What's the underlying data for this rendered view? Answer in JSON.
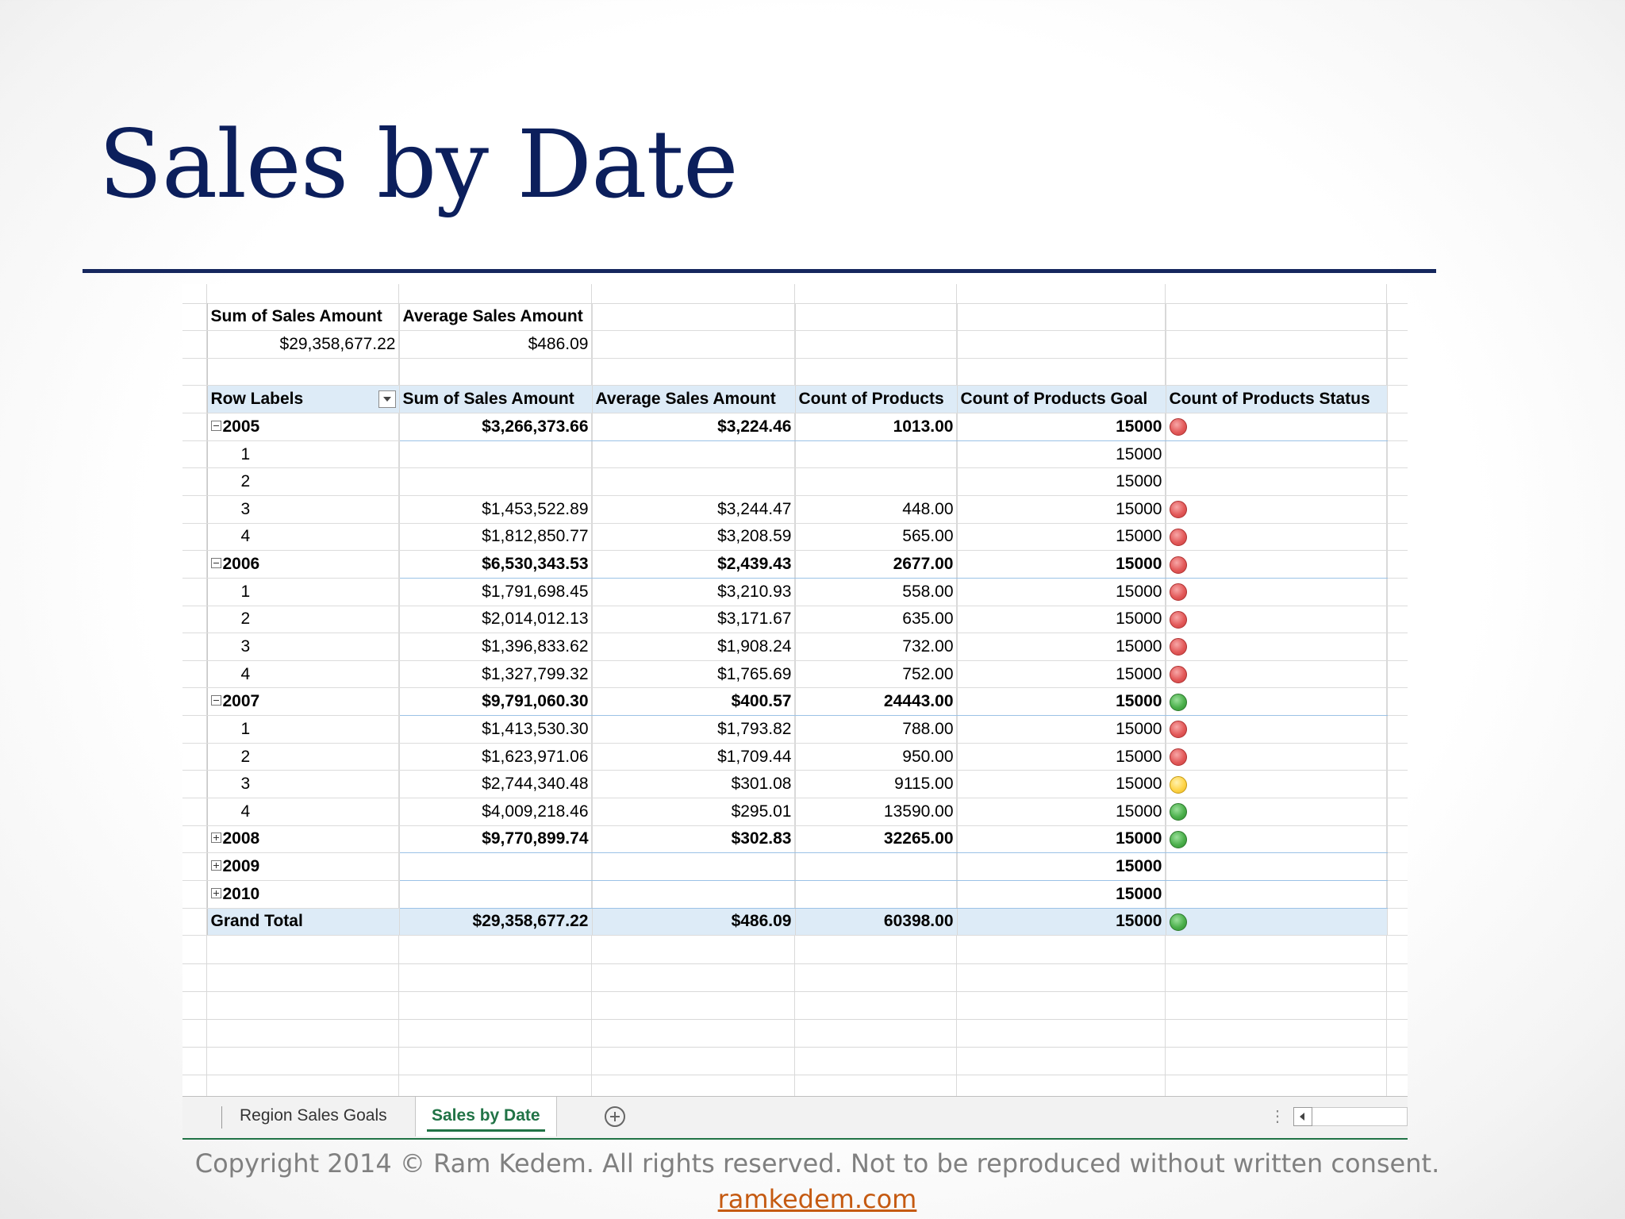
{
  "slide": {
    "title": "Sales by Date",
    "copyright": "Copyright 2014 © Ram Kedem. All rights reserved. Not to be reproduced without written consent.",
    "website": "ramkedem.com"
  },
  "summary": {
    "headers": [
      "Sum of Sales Amount",
      "Average Sales Amount"
    ],
    "values": [
      "$29,358,677.22",
      "$486.09"
    ]
  },
  "pivot": {
    "headers": [
      "Row Labels",
      "Sum of Sales Amount",
      "Average Sales Amount",
      "Count of Products",
      "Count of Products Goal",
      "Count of Products Status"
    ],
    "rows": [
      {
        "label": "2005",
        "level": "year",
        "toggle": "minus",
        "sum": "$3,266,373.66",
        "avg": "$3,224.46",
        "count": "1013.00",
        "goal": "15000",
        "status": "red"
      },
      {
        "label": "1",
        "level": "quarter",
        "sum": "",
        "avg": "",
        "count": "",
        "goal": "15000",
        "status": ""
      },
      {
        "label": "2",
        "level": "quarter",
        "sum": "",
        "avg": "",
        "count": "",
        "goal": "15000",
        "status": ""
      },
      {
        "label": "3",
        "level": "quarter",
        "sum": "$1,453,522.89",
        "avg": "$3,244.47",
        "count": "448.00",
        "goal": "15000",
        "status": "red"
      },
      {
        "label": "4",
        "level": "quarter",
        "sum": "$1,812,850.77",
        "avg": "$3,208.59",
        "count": "565.00",
        "goal": "15000",
        "status": "red"
      },
      {
        "label": "2006",
        "level": "year",
        "toggle": "minus",
        "sum": "$6,530,343.53",
        "avg": "$2,439.43",
        "count": "2677.00",
        "goal": "15000",
        "status": "red"
      },
      {
        "label": "1",
        "level": "quarter",
        "sum": "$1,791,698.45",
        "avg": "$3,210.93",
        "count": "558.00",
        "goal": "15000",
        "status": "red"
      },
      {
        "label": "2",
        "level": "quarter",
        "sum": "$2,014,012.13",
        "avg": "$3,171.67",
        "count": "635.00",
        "goal": "15000",
        "status": "red"
      },
      {
        "label": "3",
        "level": "quarter",
        "sum": "$1,396,833.62",
        "avg": "$1,908.24",
        "count": "732.00",
        "goal": "15000",
        "status": "red"
      },
      {
        "label": "4",
        "level": "quarter",
        "sum": "$1,327,799.32",
        "avg": "$1,765.69",
        "count": "752.00",
        "goal": "15000",
        "status": "red"
      },
      {
        "label": "2007",
        "level": "year",
        "toggle": "minus",
        "sum": "$9,791,060.30",
        "avg": "$400.57",
        "count": "24443.00",
        "goal": "15000",
        "status": "green"
      },
      {
        "label": "1",
        "level": "quarter",
        "sum": "$1,413,530.30",
        "avg": "$1,793.82",
        "count": "788.00",
        "goal": "15000",
        "status": "red"
      },
      {
        "label": "2",
        "level": "quarter",
        "sum": "$1,623,971.06",
        "avg": "$1,709.44",
        "count": "950.00",
        "goal": "15000",
        "status": "red"
      },
      {
        "label": "3",
        "level": "quarter",
        "sum": "$2,744,340.48",
        "avg": "$301.08",
        "count": "9115.00",
        "goal": "15000",
        "status": "yellow"
      },
      {
        "label": "4",
        "level": "quarter",
        "sum": "$4,009,218.46",
        "avg": "$295.01",
        "count": "13590.00",
        "goal": "15000",
        "status": "green"
      },
      {
        "label": "2008",
        "level": "year",
        "toggle": "plus",
        "sum": "$9,770,899.74",
        "avg": "$302.83",
        "count": "32265.00",
        "goal": "15000",
        "status": "green"
      },
      {
        "label": "2009",
        "level": "year",
        "toggle": "plus",
        "sum": "",
        "avg": "",
        "count": "",
        "goal": "15000",
        "status": ""
      },
      {
        "label": "2010",
        "level": "year",
        "toggle": "plus",
        "sum": "",
        "avg": "",
        "count": "",
        "goal": "15000",
        "status": ""
      }
    ],
    "grand_total": {
      "label": "Grand Total",
      "sum": "$29,358,677.22",
      "avg": "$486.09",
      "count": "60398.00",
      "goal": "15000",
      "status": "green"
    }
  },
  "sheet_tabs": [
    {
      "label": "Region Sales Goals",
      "active": false
    },
    {
      "label": "Sales by Date",
      "active": true
    }
  ],
  "colors": {
    "title": "#0c1f5c",
    "accent_green": "#217346",
    "header_fill": "#ddebf7",
    "status_red": "#e35a5a",
    "status_green": "#4cb04c",
    "status_yellow": "#ffd54a",
    "link": "#c55a11"
  },
  "icons": {
    "filter": "filter-dropdown-icon",
    "collapse": "collapse-minus-icon",
    "expand": "expand-plus-icon",
    "add_sheet": "plus-circle-icon",
    "scroll_left": "scroll-left-arrow-icon"
  }
}
